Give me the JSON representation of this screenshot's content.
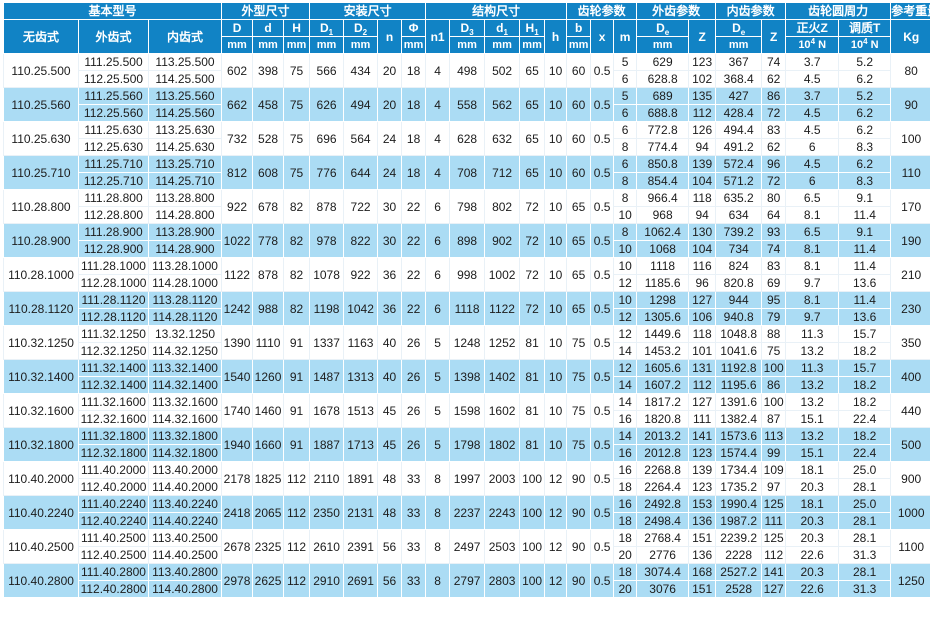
{
  "colors": {
    "header_bg": "#1183c5",
    "row_bg": "#ffffff",
    "row_alt_bg": "#abdcf4",
    "header_text": "#ffffff",
    "body_text": "#1c1c1c"
  },
  "header": {
    "groups": [
      {
        "name": "basic-model",
        "label": "基本型号",
        "span": 3
      },
      {
        "name": "outline-dims",
        "label": "外型尺寸",
        "span": 3
      },
      {
        "name": "mounting-dims",
        "label": "安装尺寸",
        "span": 4
      },
      {
        "name": "structure-dims",
        "label": "结构尺寸",
        "span": 5
      },
      {
        "name": "gear-params",
        "label": "齿轮参数",
        "span": 3
      },
      {
        "name": "ext-gear-params",
        "label": "外齿参数",
        "span": 2
      },
      {
        "name": "int-gear-params",
        "label": "内齿参数",
        "span": 2
      },
      {
        "name": "gear-circumferential-force",
        "label": "齿轮圆周力",
        "span": 2
      },
      {
        "name": "ref-weight",
        "label": "参考重量",
        "span": 1
      }
    ],
    "cols": [
      {
        "key": "model",
        "name": "model-toothless",
        "label": "无齿式"
      },
      {
        "key": "ext",
        "name": "model-ext-gear",
        "label": "外齿式"
      },
      {
        "key": "int",
        "name": "model-int-gear",
        "label": "内齿式"
      },
      {
        "key": "D",
        "name": "dim-D",
        "label": "D",
        "unit": "mm"
      },
      {
        "key": "d",
        "name": "dim-d",
        "label": "d",
        "unit": "mm"
      },
      {
        "key": "H",
        "name": "dim-H",
        "label": "H",
        "unit": "mm"
      },
      {
        "key": "D1",
        "name": "dim-D1",
        "label": "D_{1}",
        "unit": "mm"
      },
      {
        "key": "D2",
        "name": "dim-D2",
        "label": "D_{2}",
        "unit": "mm"
      },
      {
        "key": "n",
        "name": "dim-n",
        "label": "n"
      },
      {
        "key": "phi",
        "name": "dim-phi",
        "label": "Φ",
        "unit": "mm"
      },
      {
        "key": "n1",
        "name": "dim-n1",
        "label": "n1"
      },
      {
        "key": "D3",
        "name": "dim-D3",
        "label": "D_{3}",
        "unit": "mm"
      },
      {
        "key": "d1",
        "name": "dim-d1",
        "label": "d_{1}",
        "unit": "mm"
      },
      {
        "key": "H1",
        "name": "dim-H1",
        "label": "H_{1}",
        "unit": "mm"
      },
      {
        "key": "h",
        "name": "dim-h",
        "label": "h"
      },
      {
        "key": "b",
        "name": "dim-b",
        "label": "b",
        "unit": "mm"
      },
      {
        "key": "x",
        "name": "dim-x",
        "label": "x"
      },
      {
        "key": "m",
        "name": "gear-m",
        "label": "m"
      },
      {
        "key": "de_ext",
        "name": "De-ext",
        "label": "D_{e}",
        "unit": "mm"
      },
      {
        "key": "z_ext",
        "name": "Z-ext",
        "label": "Z"
      },
      {
        "key": "de_int",
        "name": "De-int",
        "label": "D_{e}",
        "unit": "mm"
      },
      {
        "key": "z_int",
        "name": "Z-int",
        "label": "Z"
      },
      {
        "key": "zf",
        "name": "normalized-force-Z",
        "label": "正火Z",
        "unit": "10^{4} N"
      },
      {
        "key": "tq",
        "name": "quenched-force-T",
        "label": "调质T",
        "unit": "10^{4} N"
      },
      {
        "key": "kg",
        "name": "weight-kg",
        "label": "Kg"
      }
    ]
  },
  "rows": [
    {
      "model": "110.25.500",
      "D": "602",
      "d": "398",
      "H": "75",
      "D1": "566",
      "D2": "434",
      "n": "20",
      "phi": "18",
      "n1": "4",
      "D3": "498",
      "d1": "502",
      "H1": "65",
      "h": "10",
      "b": "60",
      "x": "0.5",
      "kg": "80",
      "sub": [
        {
          "ext": "111.25.500",
          "int": "113.25.500",
          "m": "5",
          "de_ext": "629",
          "z_ext": "123",
          "de_int": "367",
          "z_int": "74",
          "zf": "3.7",
          "tq": "5.2"
        },
        {
          "ext": "112.25.500",
          "int": "114.25.500",
          "m": "6",
          "de_ext": "628.8",
          "z_ext": "102",
          "de_int": "368.4",
          "z_int": "62",
          "zf": "4.5",
          "tq": "6.2"
        }
      ]
    },
    {
      "model": "110.25.560",
      "D": "662",
      "d": "458",
      "H": "75",
      "D1": "626",
      "D2": "494",
      "n": "20",
      "phi": "18",
      "n1": "4",
      "D3": "558",
      "d1": "562",
      "H1": "65",
      "h": "10",
      "b": "60",
      "x": "0.5",
      "kg": "90",
      "sub": [
        {
          "ext": "111.25.560",
          "int": "113.25.560",
          "m": "5",
          "de_ext": "689",
          "z_ext": "135",
          "de_int": "427",
          "z_int": "86",
          "zf": "3.7",
          "tq": "5.2"
        },
        {
          "ext": "112.25.560",
          "int": "114.25.560",
          "m": "6",
          "de_ext": "688.8",
          "z_ext": "112",
          "de_int": "428.4",
          "z_int": "72",
          "zf": "4.5",
          "tq": "6.2"
        }
      ]
    },
    {
      "model": "110.25.630",
      "D": "732",
      "d": "528",
      "H": "75",
      "D1": "696",
      "D2": "564",
      "n": "24",
      "phi": "18",
      "n1": "4",
      "D3": "628",
      "d1": "632",
      "H1": "65",
      "h": "10",
      "b": "60",
      "x": "0.5",
      "kg": "100",
      "sub": [
        {
          "ext": "111.25.630",
          "int": "113.25.630",
          "m": "6",
          "de_ext": "772.8",
          "z_ext": "126",
          "de_int": "494.4",
          "z_int": "83",
          "zf": "4.5",
          "tq": "6.2"
        },
        {
          "ext": "112.25.630",
          "int": "114.25.630",
          "m": "8",
          "de_ext": "774.4",
          "z_ext": "94",
          "de_int": "491.2",
          "z_int": "62",
          "zf": "6",
          "tq": "8.3"
        }
      ]
    },
    {
      "model": "110.25.710",
      "D": "812",
      "d": "608",
      "H": "75",
      "D1": "776",
      "D2": "644",
      "n": "24",
      "phi": "18",
      "n1": "4",
      "D3": "708",
      "d1": "712",
      "H1": "65",
      "h": "10",
      "b": "60",
      "x": "0.5",
      "kg": "110",
      "sub": [
        {
          "ext": "111.25.710",
          "int": "113.25.710",
          "m": "6",
          "de_ext": "850.8",
          "z_ext": "139",
          "de_int": "572.4",
          "z_int": "96",
          "zf": "4.5",
          "tq": "6.2"
        },
        {
          "ext": "112.25.710",
          "int": "114.25.710",
          "m": "8",
          "de_ext": "854.4",
          "z_ext": "104",
          "de_int": "571.2",
          "z_int": "72",
          "zf": "6",
          "tq": "8.3"
        }
      ]
    },
    {
      "model": "110.28.800",
      "D": "922",
      "d": "678",
      "H": "82",
      "D1": "878",
      "D2": "722",
      "n": "30",
      "phi": "22",
      "n1": "6",
      "D3": "798",
      "d1": "802",
      "H1": "72",
      "h": "10",
      "b": "65",
      "x": "0.5",
      "kg": "170",
      "sub": [
        {
          "ext": "111.28.800",
          "int": "113.28.800",
          "m": "8",
          "de_ext": "966.4",
          "z_ext": "118",
          "de_int": "635.2",
          "z_int": "80",
          "zf": "6.5",
          "tq": "9.1"
        },
        {
          "ext": "112.28.800",
          "int": "114.28.800",
          "m": "10",
          "de_ext": "968",
          "z_ext": "94",
          "de_int": "634",
          "z_int": "64",
          "zf": "8.1",
          "tq": "11.4"
        }
      ]
    },
    {
      "model": "110.28.900",
      "D": "1022",
      "d": "778",
      "H": "82",
      "D1": "978",
      "D2": "822",
      "n": "30",
      "phi": "22",
      "n1": "6",
      "D3": "898",
      "d1": "902",
      "H1": "72",
      "h": "10",
      "b": "65",
      "x": "0.5",
      "kg": "190",
      "sub": [
        {
          "ext": "111.28.900",
          "int": "113.28.900",
          "m": "8",
          "de_ext": "1062.4",
          "z_ext": "130",
          "de_int": "739.2",
          "z_int": "93",
          "zf": "6.5",
          "tq": "9.1"
        },
        {
          "ext": "112.28.900",
          "int": "114.28.900",
          "m": "10",
          "de_ext": "1068",
          "z_ext": "104",
          "de_int": "734",
          "z_int": "74",
          "zf": "8.1",
          "tq": "11.4"
        }
      ]
    },
    {
      "model": "110.28.1000",
      "D": "1122",
      "d": "878",
      "H": "82",
      "D1": "1078",
      "D2": "922",
      "n": "36",
      "phi": "22",
      "n1": "6",
      "D3": "998",
      "d1": "1002",
      "H1": "72",
      "h": "10",
      "b": "65",
      "x": "0.5",
      "kg": "210",
      "sub": [
        {
          "ext": "111.28.1000",
          "int": "113.28.1000",
          "m": "10",
          "de_ext": "1118",
          "z_ext": "116",
          "de_int": "824",
          "z_int": "83",
          "zf": "8.1",
          "tq": "11.4"
        },
        {
          "ext": "112.28.1000",
          "int": "114.28.1000",
          "m": "12",
          "de_ext": "1185.6",
          "z_ext": "96",
          "de_int": "820.8",
          "z_int": "69",
          "zf": "9.7",
          "tq": "13.6"
        }
      ]
    },
    {
      "model": "110.28.1120",
      "D": "1242",
      "d": "988",
      "H": "82",
      "D1": "1198",
      "D2": "1042",
      "n": "36",
      "phi": "22",
      "n1": "6",
      "D3": "1118",
      "d1": "1122",
      "H1": "72",
      "h": "10",
      "b": "65",
      "x": "0.5",
      "kg": "230",
      "sub": [
        {
          "ext": "111.28.1120",
          "int": "113.28.1120",
          "m": "10",
          "de_ext": "1298",
          "z_ext": "127",
          "de_int": "944",
          "z_int": "95",
          "zf": "8.1",
          "tq": "11.4"
        },
        {
          "ext": "112.28.1120",
          "int": "114.28.1120",
          "m": "12",
          "de_ext": "1305.6",
          "z_ext": "106",
          "de_int": "940.8",
          "z_int": "79",
          "zf": "9.7",
          "tq": "13.6"
        }
      ]
    },
    {
      "model": "110.32.1250",
      "D": "1390",
      "d": "1110",
      "H": "91",
      "D1": "1337",
      "D2": "1163",
      "n": "40",
      "phi": "26",
      "n1": "5",
      "D3": "1248",
      "d1": "1252",
      "H1": "81",
      "h": "10",
      "b": "75",
      "x": "0.5",
      "kg": "350",
      "sub": [
        {
          "ext": "111.32.1250",
          "int": "13.32.1250",
          "m": "12",
          "de_ext": "1449.6",
          "z_ext": "118",
          "de_int": "1048.8",
          "z_int": "88",
          "zf": "11.3",
          "tq": "15.7"
        },
        {
          "ext": "112.32.1250",
          "int": "114.32.1250",
          "m": "14",
          "de_ext": "1453.2",
          "z_ext": "101",
          "de_int": "1041.6",
          "z_int": "75",
          "zf": "13.2",
          "tq": "18.2"
        }
      ]
    },
    {
      "model": "110.32.1400",
      "D": "1540",
      "d": "1260",
      "H": "91",
      "D1": "1487",
      "D2": "1313",
      "n": "40",
      "phi": "26",
      "n1": "5",
      "D3": "1398",
      "d1": "1402",
      "H1": "81",
      "h": "10",
      "b": "75",
      "x": "0.5",
      "kg": "400",
      "sub": [
        {
          "ext": "111.32.1400",
          "int": "113.32.1400",
          "m": "12",
          "de_ext": "1605.6",
          "z_ext": "131",
          "de_int": "1192.8",
          "z_int": "100",
          "zf": "11.3",
          "tq": "15.7"
        },
        {
          "ext": "112.32.1400",
          "int": "114.32.1400",
          "m": "14",
          "de_ext": "1607.2",
          "z_ext": "112",
          "de_int": "1195.6",
          "z_int": "86",
          "zf": "13.2",
          "tq": "18.2"
        }
      ]
    },
    {
      "model": "110.32.1600",
      "D": "1740",
      "d": "1460",
      "H": "91",
      "D1": "1678",
      "D2": "1513",
      "n": "45",
      "phi": "26",
      "n1": "5",
      "D3": "1598",
      "d1": "1602",
      "H1": "81",
      "h": "10",
      "b": "75",
      "x": "0.5",
      "kg": "440",
      "sub": [
        {
          "ext": "111.32.1600",
          "int": "113.32.1600",
          "m": "14",
          "de_ext": "1817.2",
          "z_ext": "127",
          "de_int": "1391.6",
          "z_int": "100",
          "zf": "13.2",
          "tq": "18.2"
        },
        {
          "ext": "112.32.1600",
          "int": "114.32.1600",
          "m": "16",
          "de_ext": "1820.8",
          "z_ext": "111",
          "de_int": "1382.4",
          "z_int": "87",
          "zf": "15.1",
          "tq": "22.4"
        }
      ]
    },
    {
      "model": "110.32.1800",
      "D": "1940",
      "d": "1660",
      "H": "91",
      "D1": "1887",
      "D2": "1713",
      "n": "45",
      "phi": "26",
      "n1": "5",
      "D3": "1798",
      "d1": "1802",
      "H1": "81",
      "h": "10",
      "b": "75",
      "x": "0.5",
      "kg": "500",
      "sub": [
        {
          "ext": "111.32.1800",
          "int": "113.32.1800",
          "m": "14",
          "de_ext": "2013.2",
          "z_ext": "141",
          "de_int": "1573.6",
          "z_int": "113",
          "zf": "13.2",
          "tq": "18.2"
        },
        {
          "ext": "112.32.1800",
          "int": "114.32.1800",
          "m": "16",
          "de_ext": "2012.8",
          "z_ext": "123",
          "de_int": "1574.4",
          "z_int": "99",
          "zf": "15.1",
          "tq": "22.4"
        }
      ]
    },
    {
      "model": "110.40.2000",
      "D": "2178",
      "d": "1825",
      "H": "112",
      "D1": "2110",
      "D2": "1891",
      "n": "48",
      "phi": "33",
      "n1": "8",
      "D3": "1997",
      "d1": "2003",
      "H1": "100",
      "h": "12",
      "b": "90",
      "x": "0.5",
      "kg": "900",
      "sub": [
        {
          "ext": "111.40.2000",
          "int": "113.40.2000",
          "m": "16",
          "de_ext": "2268.8",
          "z_ext": "139",
          "de_int": "1734.4",
          "z_int": "109",
          "zf": "18.1",
          "tq": "25.0"
        },
        {
          "ext": "112.40.2000",
          "int": "114.40.2000",
          "m": "18",
          "de_ext": "2264.4",
          "z_ext": "123",
          "de_int": "1735.2",
          "z_int": "97",
          "zf": "20.3",
          "tq": "28.1"
        }
      ]
    },
    {
      "model": "110.40.2240",
      "D": "2418",
      "d": "2065",
      "H": "112",
      "D1": "2350",
      "D2": "2131",
      "n": "48",
      "phi": "33",
      "n1": "8",
      "D3": "2237",
      "d1": "2243",
      "H1": "100",
      "h": "12",
      "b": "90",
      "x": "0.5",
      "kg": "1000",
      "sub": [
        {
          "ext": "111.40.2240",
          "int": "113.40.2240",
          "m": "16",
          "de_ext": "2492.8",
          "z_ext": "153",
          "de_int": "1990.4",
          "z_int": "125",
          "zf": "18.1",
          "tq": "25.0"
        },
        {
          "ext": "112.40.2240",
          "int": "114.40.2240",
          "m": "18",
          "de_ext": "2498.4",
          "z_ext": "136",
          "de_int": "1987.2",
          "z_int": "111",
          "zf": "20.3",
          "tq": "28.1"
        }
      ]
    },
    {
      "model": "110.40.2500",
      "D": "2678",
      "d": "2325",
      "H": "112",
      "D1": "2610",
      "D2": "2391",
      "n": "56",
      "phi": "33",
      "n1": "8",
      "D3": "2497",
      "d1": "2503",
      "H1": "100",
      "h": "12",
      "b": "90",
      "x": "0.5",
      "kg": "1100",
      "sub": [
        {
          "ext": "111.40.2500",
          "int": "113.40.2500",
          "m": "18",
          "de_ext": "2768.4",
          "z_ext": "151",
          "de_int": "2239.2",
          "z_int": "125",
          "zf": "20.3",
          "tq": "28.1"
        },
        {
          "ext": "112.40.2500",
          "int": "114.40.2500",
          "m": "20",
          "de_ext": "2776",
          "z_ext": "136",
          "de_int": "2228",
          "z_int": "112",
          "zf": "22.6",
          "tq": "31.3"
        }
      ]
    },
    {
      "model": "110.40.2800",
      "D": "2978",
      "d": "2625",
      "H": "112",
      "D1": "2910",
      "D2": "2691",
      "n": "56",
      "phi": "33",
      "n1": "8",
      "D3": "2797",
      "d1": "2803",
      "H1": "100",
      "h": "12",
      "b": "90",
      "x": "0.5",
      "kg": "1250",
      "sub": [
        {
          "ext": "111.40.2800",
          "int": "113.40.2800",
          "m": "18",
          "de_ext": "3074.4",
          "z_ext": "168",
          "de_int": "2527.2",
          "z_int": "141",
          "zf": "20.3",
          "tq": "28.1"
        },
        {
          "ext": "112.40.2800",
          "int": "114.40.2800",
          "m": "20",
          "de_ext": "3076",
          "z_ext": "151",
          "de_int": "2528",
          "z_int": "127",
          "zf": "22.6",
          "tq": "31.3"
        }
      ]
    }
  ]
}
